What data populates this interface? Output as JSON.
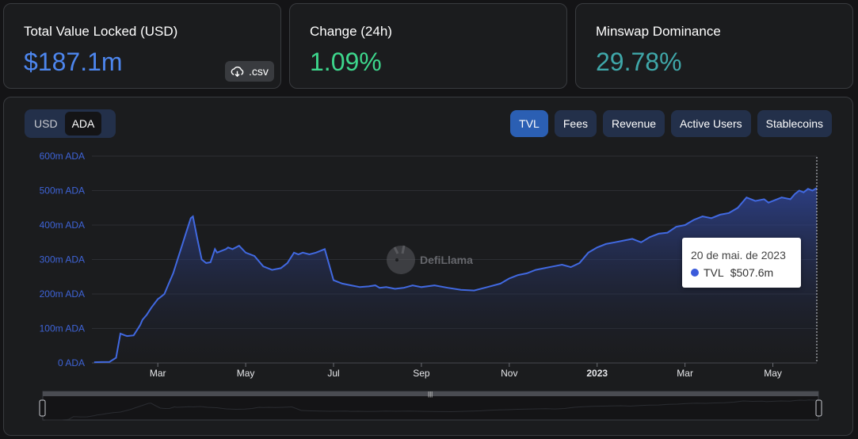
{
  "stats": {
    "tvl": {
      "label": "Total Value Locked (USD)",
      "value": "$187.1m",
      "color": "#4d86ee",
      "csv_label": ".csv"
    },
    "change": {
      "label": "Change (24h)",
      "value": "1.09%",
      "color": "#3dd68c"
    },
    "dominance": {
      "label": "Minswap Dominance",
      "value": "29.78%",
      "color": "#3fa7a9"
    }
  },
  "currency_toggle": {
    "options": [
      "USD",
      "ADA"
    ],
    "selected": "ADA"
  },
  "tabs": [
    {
      "label": "TVL",
      "active": true
    },
    {
      "label": "Fees",
      "active": false
    },
    {
      "label": "Revenue",
      "active": false
    },
    {
      "label": "Active Users",
      "active": false
    },
    {
      "label": "Stablecoins",
      "active": false
    }
  ],
  "watermark": "DefiLlama",
  "tooltip": {
    "date": "20 de mai. de 2023",
    "series": "TVL",
    "value": "$507.6m",
    "marker_color": "#3b5bdb"
  },
  "chart_data": {
    "type": "area",
    "line_color": "#4169e1",
    "y_ticks": [
      "0 ADA",
      "100m ADA",
      "200m ADA",
      "300m ADA",
      "400m ADA",
      "500m ADA",
      "600m ADA"
    ],
    "ylim": [
      0,
      600
    ],
    "x_ticks": [
      "Mar",
      "May",
      "Jul",
      "Sep",
      "Nov",
      "2023",
      "Mar",
      "May"
    ],
    "x_tick_months": [
      2,
      4,
      6,
      8,
      10,
      12,
      14,
      16
    ],
    "xlim": [
      0.5,
      17.0
    ],
    "grid": true,
    "series": [
      {
        "x": [
          0.55,
          0.9,
          1.05,
          1.15,
          1.25,
          1.3,
          1.45,
          1.6,
          1.65,
          1.75,
          1.85,
          2.0,
          2.05,
          2.15,
          2.25,
          2.35,
          2.45,
          2.55,
          2.65,
          2.75,
          2.8,
          2.9,
          3.0,
          3.1,
          3.2,
          3.3,
          3.35,
          3.45,
          3.55,
          3.6,
          3.7,
          3.85,
          4.0,
          4.2,
          4.4,
          4.6,
          4.8,
          4.95,
          5.1,
          5.2,
          5.3,
          5.45,
          5.6,
          5.8,
          6.0,
          6.2,
          6.4,
          6.6,
          6.8,
          6.95,
          7.05,
          7.2,
          7.4,
          7.6,
          7.8,
          8.0,
          8.3,
          8.6,
          8.9,
          9.2,
          9.5,
          9.8,
          10.0,
          10.2,
          10.4,
          10.6,
          10.8,
          11.0,
          11.2,
          11.4,
          11.6,
          11.8,
          12.0,
          12.2,
          12.4,
          12.6,
          12.8,
          13.0,
          13.2,
          13.4,
          13.6,
          13.8,
          14.0,
          14.2,
          14.4,
          14.6,
          14.8,
          15.0,
          15.2,
          15.4,
          15.6,
          15.8,
          15.9,
          16.0,
          16.2,
          16.4,
          16.5,
          16.6,
          16.7,
          16.8,
          16.9,
          17.0
        ],
        "values": [
          2,
          3,
          15,
          85,
          80,
          78,
          80,
          110,
          125,
          140,
          160,
          185,
          190,
          200,
          230,
          260,
          300,
          340,
          380,
          420,
          425,
          360,
          300,
          290,
          292,
          330,
          320,
          325,
          330,
          335,
          330,
          340,
          320,
          310,
          280,
          270,
          275,
          290,
          320,
          315,
          320,
          315,
          320,
          330,
          240,
          230,
          225,
          220,
          222,
          225,
          218,
          220,
          215,
          218,
          225,
          220,
          225,
          218,
          212,
          210,
          220,
          230,
          245,
          255,
          260,
          270,
          275,
          280,
          285,
          278,
          290,
          320,
          335,
          345,
          350,
          355,
          360,
          350,
          365,
          375,
          378,
          395,
          400,
          415,
          425,
          420,
          430,
          435,
          450,
          480,
          470,
          475,
          465,
          470,
          480,
          475,
          490,
          500,
          495,
          505,
          500,
          507.6
        ]
      }
    ]
  }
}
